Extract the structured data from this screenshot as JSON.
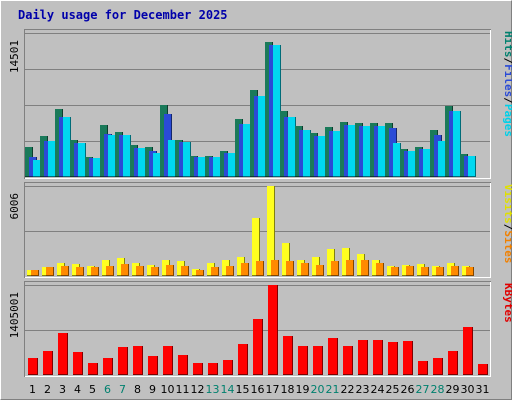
{
  "chart_data": {
    "type": "bar",
    "title": "Daily usage for December 2025",
    "categories": [
      "1",
      "2",
      "3",
      "4",
      "5",
      "6",
      "7",
      "8",
      "9",
      "10",
      "11",
      "12",
      "13",
      "14",
      "15",
      "16",
      "17",
      "18",
      "19",
      "20",
      "21",
      "22",
      "23",
      "24",
      "25",
      "26",
      "27",
      "28",
      "29",
      "30",
      "31"
    ],
    "weekend_days": [
      "6",
      "7",
      "13",
      "14",
      "20",
      "21",
      "27",
      "28"
    ],
    "panels": [
      {
        "name": "hits-files-pages",
        "ymax_label": "14501",
        "ylim": [
          0,
          14501
        ],
        "grid": true,
        "side_labels": [
          {
            "text": "Hits",
            "color": "#00806e"
          },
          {
            "text": "/",
            "color": "#000000"
          },
          {
            "text": "Files",
            "color": "#2a4bd6"
          },
          {
            "text": "/",
            "color": "#000000"
          },
          {
            "text": "Pages",
            "color": "#00d0e8"
          }
        ],
        "series": [
          {
            "name": "Hits",
            "color": "#1a7a5a",
            "values": [
              3000,
              4100,
              6800,
              3700,
              2000,
              5200,
              4500,
              3200,
              3000,
              7300,
              3700,
              2100,
              2100,
              2600,
              5800,
              8800,
              13600,
              6600,
              5100,
              4400,
              5000,
              5500,
              5400,
              5400,
              5400,
              2800,
              3000,
              4700,
              7100,
              2300,
              0
            ]
          },
          {
            "name": "Files",
            "color": "#2a4bd6",
            "values": [
              2000,
              3600,
              6000,
              3400,
              1900,
              4300,
              4200,
              2900,
              2600,
              6300,
              3500,
              2000,
              2000,
              2400,
              5300,
              8200,
              13300,
              6000,
              4700,
              4100,
              4600,
              5200,
              5100,
              5100,
              4900,
              2600,
              2800,
              4200,
              6600,
              2100,
              0
            ]
          },
          {
            "name": "Pages",
            "color": "#00d8f0",
            "values": [
              1700,
              3600,
              6000,
              3400,
              1900,
              4200,
              4200,
              2900,
              2400,
              3700,
              3500,
              2000,
              2000,
              2400,
              5300,
              8200,
              13300,
              6000,
              4700,
              4100,
              4600,
              5200,
              5100,
              5100,
              3400,
              2600,
              2800,
              3600,
              6600,
              2100,
              0
            ]
          }
        ]
      },
      {
        "name": "visits-sites",
        "ymax_label": "6006",
        "ylim": [
          0,
          6006
        ],
        "grid": true,
        "side_labels": [
          {
            "text": "Visits",
            "color": "#e0e000"
          },
          {
            "text": "/",
            "color": "#000000"
          },
          {
            "text": "Sites",
            "color": "#f08000"
          }
        ],
        "series": [
          {
            "name": "Visits",
            "color": "#ffff20",
            "values": [
              380,
              630,
              870,
              800,
              680,
              1050,
              1200,
              850,
              720,
              1100,
              1000,
              450,
              860,
              1050,
              1300,
              3850,
              6006,
              2200,
              1050,
              1250,
              1800,
              1850,
              1500,
              1100,
              700,
              720,
              800,
              680,
              850,
              650,
              0
            ]
          },
          {
            "name": "Sites",
            "color": "#ff8a00",
            "values": [
              380,
              600,
              650,
              620,
              600,
              700,
              800,
              650,
              600,
              750,
              700,
              400,
              600,
              700,
              900,
              1000,
              1050,
              1000,
              850,
              750,
              1000,
              1100,
              1050,
              900,
              620,
              650,
              600,
              600,
              650,
              600,
              0
            ]
          }
        ]
      },
      {
        "name": "kbytes",
        "ymax_label": "1405001",
        "ylim": [
          0,
          1405001
        ],
        "grid": true,
        "side_labels": [
          {
            "text": "KBytes",
            "color": "#e00000"
          }
        ],
        "series": [
          {
            "name": "KBytes",
            "color": "#ff0000",
            "values": [
              265000,
              375000,
              660000,
              360000,
              195000,
              265000,
              440000,
              455000,
              300000,
              445000,
              310000,
              185000,
              185000,
              240000,
              490000,
              880000,
              1405001,
              610000,
              460000,
              445000,
              580000,
              460000,
              540000,
              540000,
              520000,
              535000,
              215000,
              260000,
              380000,
              755000,
              175000
            ]
          }
        ]
      }
    ]
  }
}
